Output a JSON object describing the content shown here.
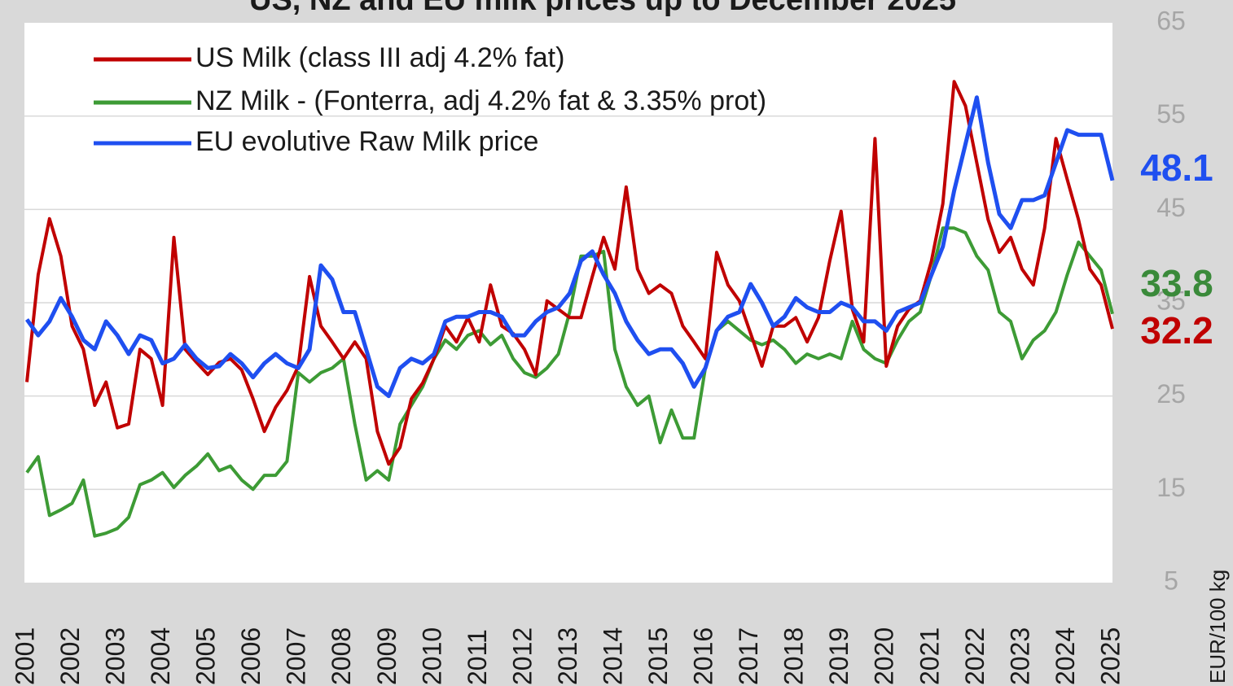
{
  "chart_data": {
    "type": "line",
    "title": "US, NZ and EU milk prices up to December 2025",
    "y_axis_label": "EUR/100 kg",
    "xlim": [
      2001,
      2025
    ],
    "xticks": [
      2001,
      2002,
      2003,
      2004,
      2005,
      2006,
      2007,
      2008,
      2009,
      2010,
      2011,
      2012,
      2013,
      2014,
      2015,
      2016,
      2017,
      2018,
      2019,
      2020,
      2021,
      2022,
      2023,
      2024,
      2025
    ],
    "ylim": [
      5,
      65
    ],
    "yticks": [
      5,
      15,
      25,
      35,
      45,
      55,
      65
    ],
    "grid": true,
    "legend": "upper-left",
    "x": [
      2001,
      2001.25,
      2001.5,
      2001.75,
      2002,
      2002.25,
      2002.5,
      2002.75,
      2003,
      2003.25,
      2003.5,
      2003.75,
      2004,
      2004.25,
      2004.5,
      2004.75,
      2005,
      2005.25,
      2005.5,
      2005.75,
      2006,
      2006.25,
      2006.5,
      2006.75,
      2007,
      2007.25,
      2007.5,
      2007.75,
      2008,
      2008.25,
      2008.5,
      2008.75,
      2009,
      2009.25,
      2009.5,
      2009.75,
      2010,
      2010.25,
      2010.5,
      2010.75,
      2011,
      2011.25,
      2011.5,
      2011.75,
      2012,
      2012.25,
      2012.5,
      2012.75,
      2013,
      2013.25,
      2013.5,
      2013.75,
      2014,
      2014.25,
      2014.5,
      2014.75,
      2015,
      2015.25,
      2015.5,
      2015.75,
      2016,
      2016.25,
      2016.5,
      2016.75,
      2017,
      2017.25,
      2017.5,
      2017.75,
      2018,
      2018.25,
      2018.5,
      2018.75,
      2019,
      2019.25,
      2019.5,
      2019.75,
      2020,
      2020.25,
      2020.5,
      2020.75,
      2021,
      2021.25,
      2021.5,
      2021.75,
      2022,
      2022.25,
      2022.5,
      2022.75,
      2023,
      2023.25,
      2023.5,
      2023.75,
      2024,
      2024.25,
      2024.5,
      2024.75,
      2025
    ],
    "series": [
      {
        "name": "US Milk (class III adj 4.2% fat)",
        "color": "#c00000",
        "values": [
          26.5,
          38,
          44,
          40,
          32.5,
          30,
          24,
          26.5,
          21.6,
          22,
          30,
          29,
          24,
          42,
          30,
          28.6,
          27.3,
          28.6,
          29,
          27.8,
          24.7,
          21.2,
          23.8,
          25.6,
          28.2,
          37.8,
          32.5,
          30.8,
          29,
          30.8,
          29,
          21.2,
          17.7,
          19.5,
          24.7,
          26.4,
          29,
          32.5,
          30.8,
          33.4,
          30.8,
          36.9,
          32.5,
          31.7,
          30,
          27.3,
          35.2,
          34.3,
          33.4,
          33.4,
          37.8,
          42,
          38.6,
          47.4,
          38.6,
          36,
          36.9,
          36,
          32.5,
          30.8,
          29,
          40.4,
          36.9,
          35.2,
          31.7,
          28.2,
          32.5,
          32.5,
          33.4,
          30.8,
          33.4,
          39.5,
          44.8,
          34.3,
          30.8,
          52.6,
          28.2,
          32.5,
          34.3,
          35.2,
          39.5,
          45.6,
          58.7,
          56.1,
          50,
          43.9,
          40.4,
          42,
          38.6,
          36.9,
          43,
          52.6,
          48.2,
          43.9,
          38.6,
          36.9,
          32.2
        ]
      },
      {
        "name": "NZ Milk - (Fonterra, adj 4.2% fat & 3.35% prot)",
        "color": "#3d9b35",
        "values": [
          16.8,
          18.5,
          12.2,
          12.8,
          13.5,
          16,
          10,
          10.3,
          10.8,
          12,
          15.5,
          16,
          16.8,
          15.2,
          16.5,
          17.5,
          18.8,
          17,
          17.5,
          16,
          15,
          16.5,
          16.5,
          18,
          27.5,
          26.5,
          27.5,
          28,
          29,
          22,
          16,
          17,
          16,
          22,
          24,
          26,
          29,
          31,
          30,
          31.5,
          32,
          30.5,
          31.5,
          29,
          27.5,
          27,
          28,
          29.5,
          34,
          40,
          40,
          40.5,
          30,
          26,
          24,
          25,
          20,
          23.5,
          20.5,
          20.5,
          28,
          32,
          33,
          32,
          31,
          30.5,
          31,
          30,
          28.5,
          29.5,
          29,
          29.5,
          29,
          33,
          30,
          29,
          28.5,
          31,
          33,
          34,
          38,
          43,
          43,
          42.5,
          40,
          38.5,
          34,
          33,
          29,
          31,
          32,
          34,
          38,
          41.5,
          40,
          38.5,
          33.8
        ]
      },
      {
        "name": "EU evolutive Raw Milk price",
        "color": "#1f4ff0",
        "values": [
          33.2,
          31.5,
          33,
          35.5,
          33.5,
          31,
          30,
          33,
          31.5,
          29.5,
          31.5,
          31,
          28.5,
          29,
          30.5,
          29,
          28,
          28.2,
          29.5,
          28.5,
          27,
          28.5,
          29.5,
          28.5,
          28,
          30,
          39,
          37.5,
          34,
          34,
          30,
          26,
          25,
          28,
          29,
          28.5,
          29.5,
          33,
          33.5,
          33.5,
          34,
          34,
          33.5,
          31.5,
          31.5,
          33,
          34,
          34.5,
          36,
          39.5,
          40.5,
          38,
          36,
          33,
          31,
          29.5,
          30,
          30,
          28.5,
          26,
          28,
          32,
          33.5,
          34,
          37,
          35,
          32.5,
          33.5,
          35.5,
          34.5,
          34,
          34,
          35,
          34.5,
          33,
          33,
          32,
          34,
          34.5,
          35,
          38,
          41,
          47,
          52,
          57,
          50,
          44.5,
          43,
          46,
          46,
          46.5,
          50,
          53.5,
          53,
          53,
          53,
          48.1
        ]
      }
    ]
  }
}
